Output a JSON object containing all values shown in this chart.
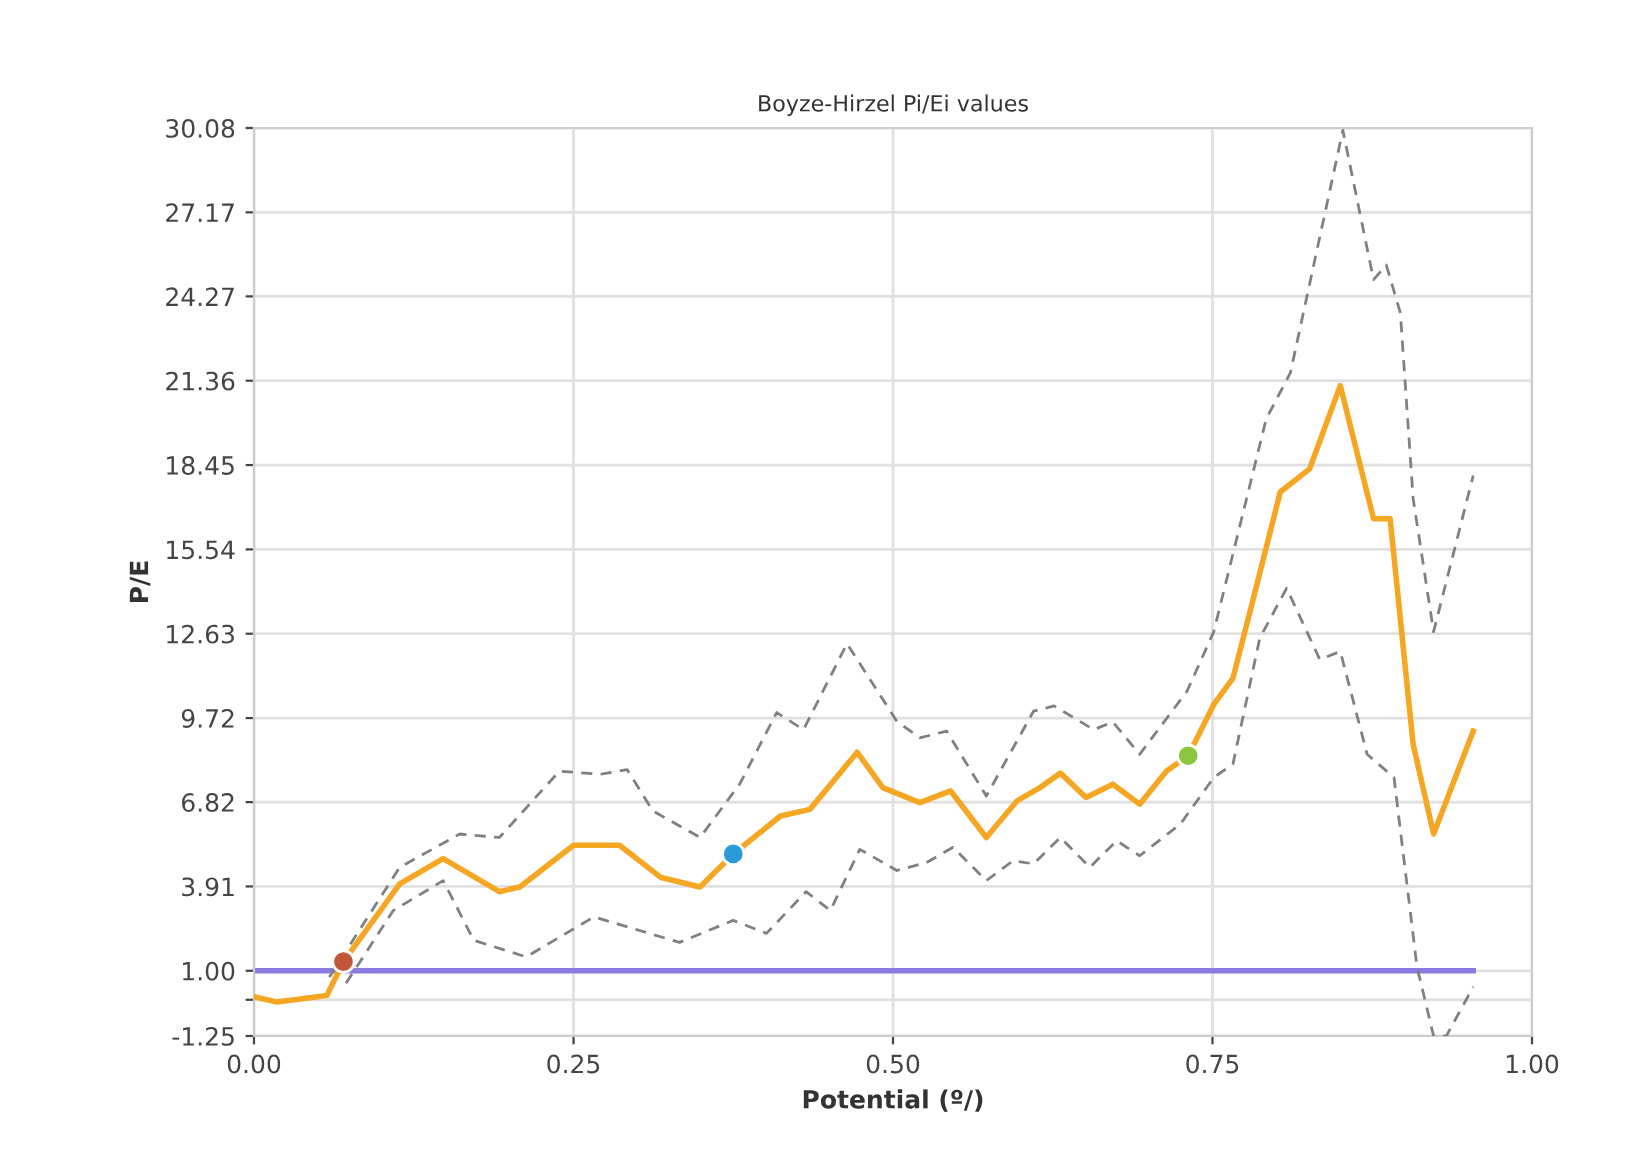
{
  "chart_data": {
    "type": "line",
    "title": "Boyze-Hirzel Pi/Ei values",
    "xlabel": "Potential (º/)",
    "ylabel": "P/E",
    "xlim": [
      0,
      1
    ],
    "xticks": [
      {
        "value": 0,
        "label": "0.00"
      },
      {
        "value": 0.25,
        "label": "0.25"
      },
      {
        "value": 0.5,
        "label": "0.50"
      },
      {
        "value": 0.75,
        "label": "0.75"
      },
      {
        "value": 1,
        "label": "1.00"
      }
    ],
    "ylim": [
      -1.25,
      30.08
    ],
    "yticks": [
      -1.25,
      {
        "value": 0,
        "label": null
      },
      {
        "value": 1,
        "label": "1.00"
      },
      3.91,
      6.82,
      9.72,
      12.63,
      15.54,
      18.45,
      21.36,
      24.27,
      27.17,
      30.08
    ],
    "grid": true,
    "legend": false,
    "series": [
      {
        "color": "#8a7be0",
        "marker": "none",
        "line_style": "solid",
        "x": [
          0,
          0.954
        ],
        "values": [
          1,
          1
        ]
      },
      {
        "color": "#808080",
        "marker": "none",
        "line_style": "dashed",
        "x": [
          0.059,
          0.114,
          0.161,
          0.192,
          0.239,
          0.271,
          0.292,
          0.312,
          0.349,
          0.38,
          0.409,
          0.43,
          0.464,
          0.503,
          0.521,
          0.542,
          0.573,
          0.61,
          0.626,
          0.657,
          0.672,
          0.693,
          0.73,
          0.751,
          0.792,
          0.811,
          0.852,
          0.876,
          0.886,
          0.897,
          0.907,
          0.923,
          0.954
        ],
        "values": [
          0.79,
          4.57,
          5.72,
          5.6,
          7.89,
          7.78,
          7.94,
          6.52,
          5.6,
          7.44,
          9.91,
          9.32,
          12.29,
          9.61,
          9.04,
          9.27,
          7.03,
          9.96,
          10.14,
          9.32,
          9.59,
          8.47,
          10.64,
          12.7,
          20.04,
          21.64,
          30.0,
          24.85,
          25.35,
          23.7,
          17.29,
          12.7,
          18.09
        ]
      },
      {
        "color": "#808080",
        "marker": "none",
        "line_style": "dashed",
        "x": [
          0.072,
          0.109,
          0.148,
          0.172,
          0.213,
          0.266,
          0.333,
          0.375,
          0.401,
          0.432,
          0.451,
          0.474,
          0.503,
          0.526,
          0.547,
          0.573,
          0.594,
          0.61,
          0.631,
          0.654,
          0.675,
          0.693,
          0.725,
          0.751,
          0.766,
          0.787,
          0.808,
          0.834,
          0.85,
          0.871,
          0.892,
          0.91,
          0.923,
          0.933,
          0.954
        ],
        "values": [
          0.57,
          3.08,
          4.11,
          2.05,
          1.48,
          2.86,
          1.98,
          2.74,
          2.29,
          3.73,
          3.08,
          5.19,
          4.46,
          4.73,
          5.26,
          4.11,
          4.8,
          4.69,
          5.6,
          4.57,
          5.49,
          4.97,
          6.07,
          7.67,
          8.13,
          12.48,
          14.2,
          11.74,
          12.02,
          8.47,
          7.67,
          1.14,
          -1.25,
          -1.25,
          0.45
        ]
      },
      {
        "color": "#f5a623",
        "marker": "none",
        "line_style": "solid",
        "x": [
          0,
          0.018,
          0.057,
          0.07,
          0.114,
          0.148,
          0.192,
          0.208,
          0.25,
          0.286,
          0.318,
          0.349,
          0.375,
          0.412,
          0.435,
          0.472,
          0.492,
          0.521,
          0.545,
          0.573,
          0.597,
          0.615,
          0.631,
          0.651,
          0.672,
          0.693,
          0.714,
          0.731,
          0.751,
          0.766,
          0.782,
          0.803,
          0.826,
          0.85,
          0.876,
          0.889,
          0.907,
          0.923,
          0.954
        ],
        "values": [
          0.11,
          -0.08,
          0.15,
          1.32,
          4.0,
          4.87,
          3.73,
          3.89,
          5.33,
          5.33,
          4.23,
          3.89,
          5.03,
          6.34,
          6.57,
          8.54,
          7.32,
          6.8,
          7.21,
          5.6,
          6.86,
          7.32,
          7.82,
          6.98,
          7.44,
          6.75,
          7.89,
          8.42,
          10.19,
          11.1,
          13.85,
          17.52,
          18.32,
          21.19,
          16.6,
          16.6,
          8.81,
          5.72,
          9.27
        ]
      },
      {
        "type": "scatter",
        "marker": "circle",
        "colors": [
          "#c0573a",
          "#2a9ad8",
          "#8cc63f"
        ],
        "x": [
          0.07,
          0.375,
          0.731
        ],
        "values": [
          1.32,
          5.03,
          8.42
        ]
      }
    ]
  }
}
